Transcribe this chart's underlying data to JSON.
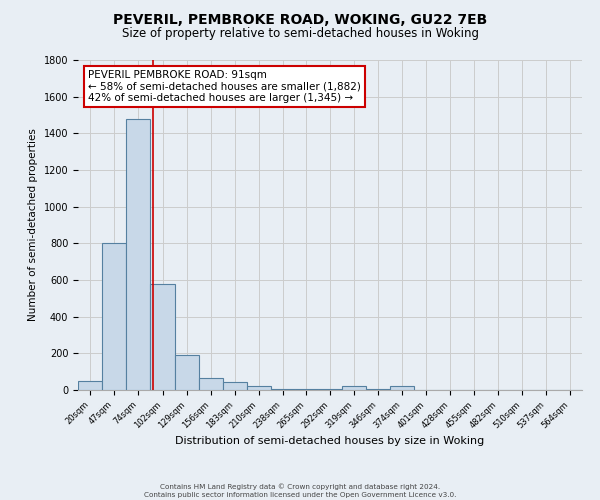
{
  "title1": "PEVERIL, PEMBROKE ROAD, WOKING, GU22 7EB",
  "title2": "Size of property relative to semi-detached houses in Woking",
  "xlabel": "Distribution of semi-detached houses by size in Woking",
  "ylabel": "Number of semi-detached properties",
  "bin_labels": [
    "20sqm",
    "47sqm",
    "74sqm",
    "102sqm",
    "129sqm",
    "156sqm",
    "183sqm",
    "210sqm",
    "238sqm",
    "265sqm",
    "292sqm",
    "319sqm",
    "346sqm",
    "374sqm",
    "401sqm",
    "428sqm",
    "455sqm",
    "482sqm",
    "510sqm",
    "537sqm",
    "564sqm"
  ],
  "bar_heights": [
    50,
    800,
    1480,
    580,
    190,
    65,
    45,
    20,
    5,
    5,
    5,
    20,
    5,
    20,
    0,
    0,
    0,
    0,
    0,
    0,
    0
  ],
  "bin_edges": [
    6.5,
    33.5,
    60.5,
    88.0,
    115.5,
    142.5,
    169.5,
    196.5,
    223.5,
    250.5,
    277.5,
    304.5,
    331.5,
    358.5,
    385.5,
    412.5,
    439.5,
    466.5,
    493.5,
    520.5,
    547.5,
    574.5
  ],
  "bar_color": "#c8d8e8",
  "bar_edge_color": "#5580a0",
  "grid_color": "#cccccc",
  "background_color": "#e8eef4",
  "vline_x": 91,
  "vline_color": "#cc0000",
  "ylim": [
    0,
    1800
  ],
  "yticks": [
    0,
    200,
    400,
    600,
    800,
    1000,
    1200,
    1400,
    1600,
    1800
  ],
  "annotation_title": "PEVERIL PEMBROKE ROAD: 91sqm",
  "annotation_line1": "← 58% of semi-detached houses are smaller (1,882)",
  "annotation_line2": "42% of semi-detached houses are larger (1,345) →",
  "annotation_box_facecolor": "#ffffff",
  "annotation_box_edgecolor": "#cc0000",
  "footnote1": "Contains HM Land Registry data © Crown copyright and database right 2024.",
  "footnote2": "Contains public sector information licensed under the Open Government Licence v3.0."
}
